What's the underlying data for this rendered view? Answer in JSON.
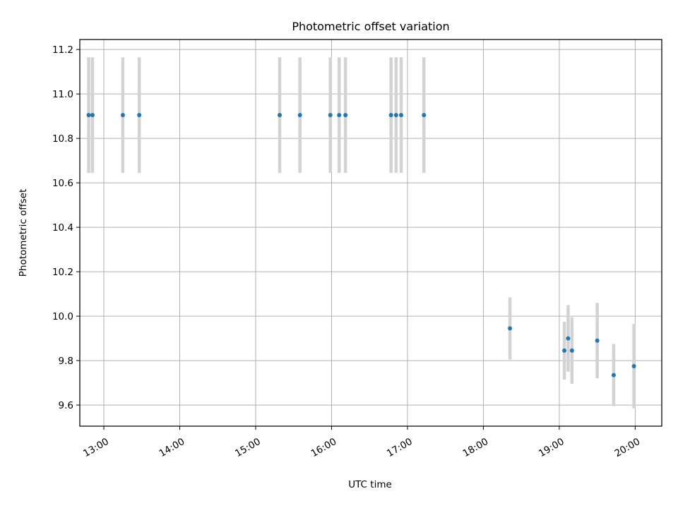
{
  "chart_data": {
    "type": "scatter",
    "title": "Photometric offset variation",
    "xlabel": "UTC time",
    "ylabel": "Photometric offset",
    "x_axis_type": "time",
    "grid": true,
    "xlim": [
      "12:41",
      "20:21"
    ],
    "ylim": [
      9.505,
      11.245
    ],
    "yticks": [
      9.6,
      9.8,
      10.0,
      10.2,
      10.4,
      10.6,
      10.8,
      11.0,
      11.2
    ],
    "ytick_labels": [
      "9.6",
      "9.8",
      "10.0",
      "10.2",
      "10.4",
      "10.6",
      "10.8",
      "11.0",
      "11.2"
    ],
    "xticks": [
      "13:00",
      "14:00",
      "15:00",
      "16:00",
      "17:00",
      "18:00",
      "19:00",
      "20:00"
    ],
    "point_color": "#1f77b4",
    "errorbar_color": "#d3d3d3",
    "points": [
      {
        "x": "12:48",
        "y": 10.905,
        "err": 0.26
      },
      {
        "x": "12:51",
        "y": 10.905,
        "err": 0.26
      },
      {
        "x": "13:15",
        "y": 10.905,
        "err": 0.26
      },
      {
        "x": "13:28",
        "y": 10.905,
        "err": 0.26
      },
      {
        "x": "15:19",
        "y": 10.905,
        "err": 0.26
      },
      {
        "x": "15:35",
        "y": 10.905,
        "err": 0.26
      },
      {
        "x": "15:59",
        "y": 10.905,
        "err": 0.26
      },
      {
        "x": "16:06",
        "y": 10.905,
        "err": 0.26
      },
      {
        "x": "16:11",
        "y": 10.905,
        "err": 0.26
      },
      {
        "x": "16:47",
        "y": 10.905,
        "err": 0.26
      },
      {
        "x": "16:51",
        "y": 10.905,
        "err": 0.26
      },
      {
        "x": "16:55",
        "y": 10.905,
        "err": 0.26
      },
      {
        "x": "17:13",
        "y": 10.905,
        "err": 0.26
      },
      {
        "x": "18:21",
        "y": 9.945,
        "err": 0.14
      },
      {
        "x": "19:04",
        "y": 9.845,
        "err": 0.13
      },
      {
        "x": "19:07",
        "y": 9.9,
        "err": 0.15
      },
      {
        "x": "19:10",
        "y": 9.845,
        "err": 0.15
      },
      {
        "x": "19:30",
        "y": 9.89,
        "err": 0.17
      },
      {
        "x": "19:43",
        "y": 9.735,
        "err": 0.14
      },
      {
        "x": "19:59",
        "y": 9.775,
        "err": 0.19
      }
    ]
  }
}
